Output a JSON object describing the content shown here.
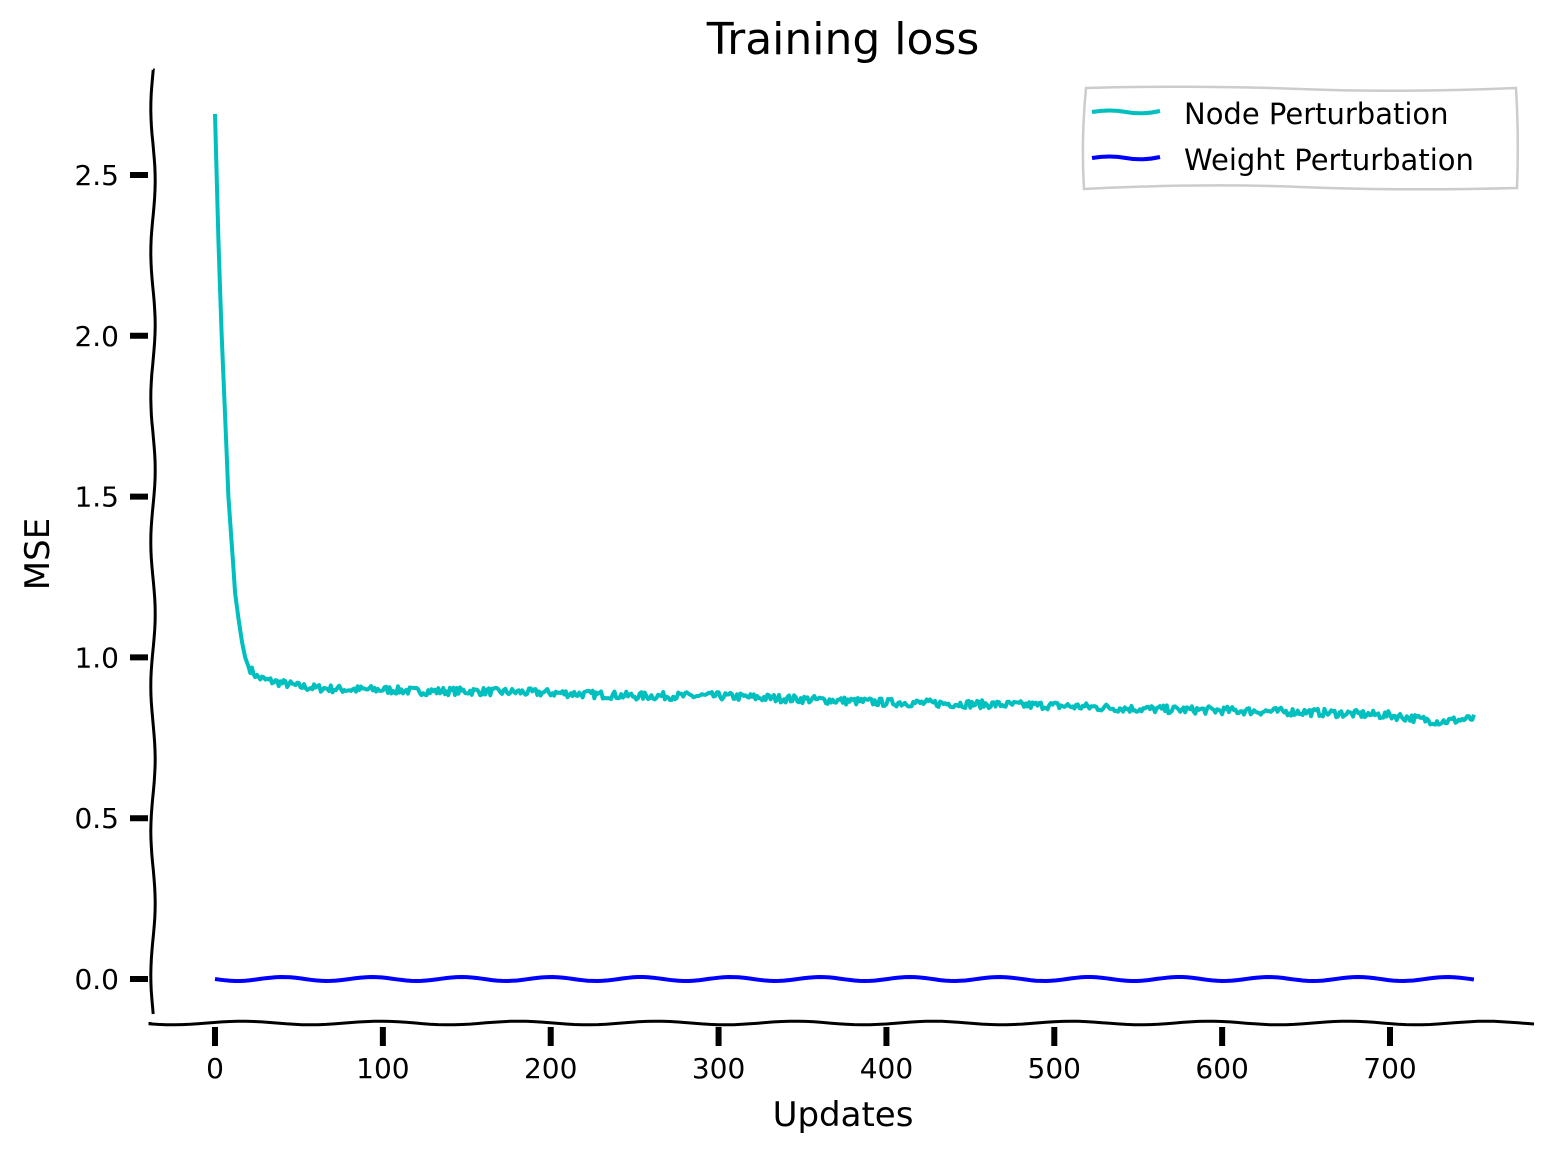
{
  "chart_data": {
    "type": "line",
    "title": "Training loss",
    "xlabel": "Updates",
    "ylabel": "MSE",
    "xlim": [
      -37,
      787
    ],
    "ylim": [
      -0.13,
      2.82
    ],
    "xticks": [
      0,
      100,
      200,
      300,
      400,
      500,
      600,
      700
    ],
    "xtick_labels": [
      "0",
      "100",
      "200",
      "300",
      "400",
      "500",
      "600",
      "700"
    ],
    "yticks": [
      0.0,
      0.5,
      1.0,
      1.5,
      2.0,
      2.5
    ],
    "ytick_labels": [
      "0.0",
      "0.5",
      "1.0",
      "1.5",
      "2.0",
      "2.5"
    ],
    "grid": false,
    "legend_position": "top-right",
    "series": [
      {
        "name": "Node Perturbation",
        "color": "#00bfbf",
        "x": [
          0,
          2,
          4,
          6,
          8,
          10,
          12,
          14,
          16,
          18,
          20,
          25,
          30,
          40,
          50,
          60,
          80,
          100,
          120,
          150,
          200,
          250,
          300,
          350,
          400,
          450,
          500,
          550,
          600,
          650,
          700,
          730,
          750
        ],
        "y": [
          2.69,
          2.3,
          2.0,
          1.75,
          1.5,
          1.35,
          1.2,
          1.12,
          1.05,
          1.0,
          0.97,
          0.94,
          0.93,
          0.92,
          0.91,
          0.905,
          0.9,
          0.9,
          0.895,
          0.895,
          0.89,
          0.88,
          0.88,
          0.87,
          0.86,
          0.855,
          0.85,
          0.84,
          0.835,
          0.83,
          0.82,
          0.8,
          0.81
        ]
      },
      {
        "name": "Weight Perturbation",
        "color": "#0000ff",
        "x": [
          0,
          750
        ],
        "y": [
          0.0,
          0.0
        ]
      }
    ]
  }
}
